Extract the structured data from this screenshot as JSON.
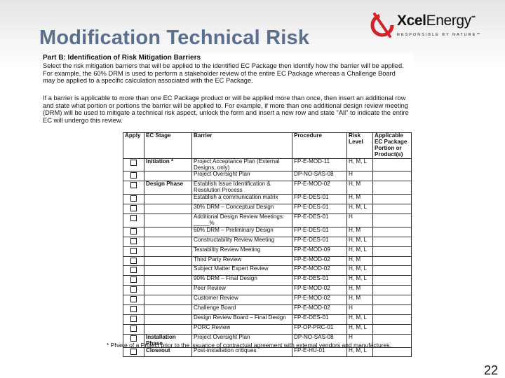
{
  "slide": {
    "title": "Modification Technical Risk",
    "page_number": "22"
  },
  "logo": {
    "brand_bold": "Xcel",
    "brand_light": "Energy",
    "mark": "℠",
    "tagline": "RESPONSIBLE BY NATURE℠"
  },
  "doc": {
    "heading": "Part B: Identification of Risk Mitigation Barriers",
    "para1": "Select the risk mitigation barriers that will be applied to the identified EC Package then identify how the barrier will be applied.  For example, the 60% DRM is used to perform a stakeholder review of the entire EC Package whereas a Challenge Board may be applied to a specific calculation associated with the EC Package.",
    "para2": "If a barrier is applicable to more than one EC Package product or will be applied more than once, then insert an additional row and state what portion or portions the barrier will be applied to.  For example, if more than one additional design review meeting (DRM) will be used to mitigate a technical risk aspect, unlock the form and insert a new row and state \"All\" to indicate the entire EC will undergo this review.",
    "footnote": "* Phase of a Project prior to the issuance of contractual agreement with external vendors and manufactures."
  },
  "table": {
    "headers": {
      "apply": "Apply",
      "stage": "EC Stage",
      "barrier": "Barrier",
      "procedure": "Procedure",
      "risk": "Risk Level",
      "portion": "Applicable EC Package Portion or Product(s)"
    },
    "rows": [
      {
        "stage": "Initiation *",
        "barrier": "Project Acceptance Plan (External Designs, only)",
        "procedure": "FP-E-MOD-11",
        "risk": "H, M, L"
      },
      {
        "stage": "",
        "barrier": "Project Oversight Plan",
        "procedure": "DP-NO-SAS-08",
        "risk": "H"
      },
      {
        "stage": "Design Phase",
        "barrier": "Establish Issue Identification & Resolution Process",
        "procedure": "FP-E-MOD-02",
        "risk": "H, M"
      },
      {
        "stage": "",
        "barrier": "Establish a communication matrix",
        "procedure": "FP-E-DES-01",
        "risk": "H, M"
      },
      {
        "stage": "",
        "barrier": "30% DRM – Conceptual Design",
        "procedure": "FP-E-DES-01",
        "risk": "H, M, L"
      },
      {
        "stage": "",
        "barrier": "Additional Design Review Meetings: _____%",
        "procedure": "FP-E-DES-01",
        "risk": "H"
      },
      {
        "stage": "",
        "barrier": "60% DRM – Preliminary Design",
        "procedure": "FP-E-DES-01",
        "risk": "H, M"
      },
      {
        "stage": "",
        "barrier": "Constructability Review Meeting",
        "procedure": "FP-E-DES-01",
        "risk": "H, M, L"
      },
      {
        "stage": "",
        "barrier": "Testability Review Meeting",
        "procedure": "FP-E-MOD-09",
        "risk": "H, M, L"
      },
      {
        "stage": "",
        "barrier": "Third Party Review",
        "procedure": "FP-E-MOD-02",
        "risk": "H, M"
      },
      {
        "stage": "",
        "barrier": "Subject Matter Expert Review",
        "procedure": "FP-E-MOD-02",
        "risk": "H, M, L"
      },
      {
        "stage": "",
        "barrier": "90% DRM – Final Design",
        "procedure": "FP-E-DES-01",
        "risk": "H, M, L"
      },
      {
        "stage": "",
        "barrier": "Peer Review",
        "procedure": "FP-E-MOD-02",
        "risk": "H, M"
      },
      {
        "stage": "",
        "barrier": "Customer Review",
        "procedure": "FP-E-MOD-02",
        "risk": "H, M"
      },
      {
        "stage": "",
        "barrier": "Challenge Board",
        "procedure": "FP-E-MOD-02",
        "risk": "H"
      },
      {
        "stage": "",
        "barrier": "Design Review Board – Final Design",
        "procedure": "FP-E-DES-01",
        "risk": "H, M, L"
      },
      {
        "stage": "",
        "barrier": "PORC Review",
        "procedure": "FP-OP-PRC-01",
        "risk": "H, M, L"
      },
      {
        "stage": "Installation Phase",
        "barrier": "Project Oversight Plan",
        "procedure": "DP-NO-SAS-08",
        "risk": "H"
      },
      {
        "stage": "Closeout",
        "barrier": "Post-installation critiques",
        "procedure": "FP-E-HU-01",
        "risk": "H, M, L"
      }
    ]
  }
}
